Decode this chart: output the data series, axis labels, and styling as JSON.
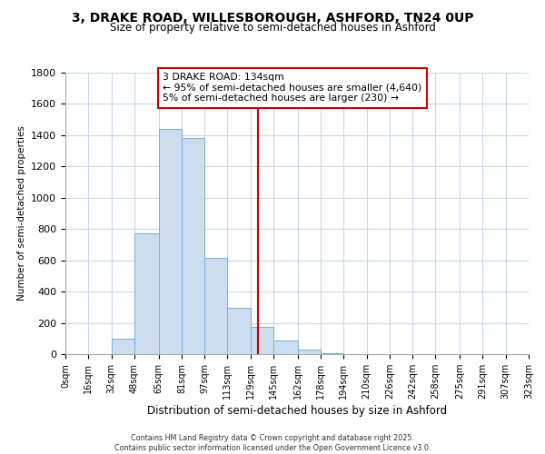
{
  "title": "3, DRAKE ROAD, WILLESBOROUGH, ASHFORD, TN24 0UP",
  "subtitle": "Size of property relative to semi-detached houses in Ashford",
  "xlabel": "Distribution of semi-detached houses by size in Ashford",
  "ylabel": "Number of semi-detached properties",
  "bar_color": "#ccddf0",
  "bar_edge_color": "#7aadd4",
  "background_color": "#ffffff",
  "grid_color": "#c8d8ea",
  "annotation_line_color": "#cc0000",
  "annotation_box_edge_color": "#cc0000",
  "annotation_text": "3 DRAKE ROAD: 134sqm",
  "annotation_smaller": "← 95% of semi-detached houses are smaller (4,640)",
  "annotation_larger": "5% of semi-detached houses are larger (230) →",
  "property_size": 134,
  "footer_line1": "Contains HM Land Registry data © Crown copyright and database right 2025.",
  "footer_line2": "Contains public sector information licensed under the Open Government Licence v3.0.",
  "bin_edges": [
    0,
    16,
    32,
    48,
    65,
    81,
    97,
    113,
    129,
    145,
    162,
    178,
    194,
    210,
    226,
    242,
    258,
    275,
    291,
    307,
    323
  ],
  "bin_counts": [
    0,
    0,
    100,
    775,
    1440,
    1380,
    615,
    295,
    175,
    85,
    30,
    5,
    0,
    0,
    0,
    0,
    0,
    0,
    0,
    0
  ],
  "ylim": [
    0,
    1800
  ],
  "yticks": [
    0,
    200,
    400,
    600,
    800,
    1000,
    1200,
    1400,
    1600,
    1800
  ]
}
